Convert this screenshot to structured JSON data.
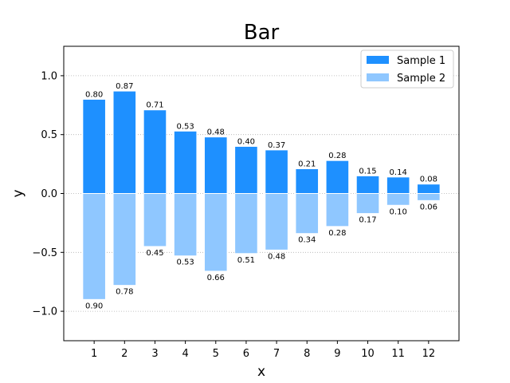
{
  "chart_data": {
    "type": "bar",
    "title": "Bar",
    "xlabel": "x",
    "ylabel": "y",
    "categories": [
      "1",
      "2",
      "3",
      "4",
      "5",
      "6",
      "7",
      "8",
      "9",
      "10",
      "11",
      "12"
    ],
    "xlim": [
      0,
      13
    ],
    "ylim": [
      -1.25,
      1.25
    ],
    "yticks": [
      -1.0,
      -0.5,
      0.0,
      0.5,
      1.0
    ],
    "ytick_labels": [
      "−1.0",
      "−0.5",
      "0.0",
      "0.5",
      "1.0"
    ],
    "grid": "horizontal-dotted",
    "legend_position": "top-right",
    "series": [
      {
        "name": "Sample 1",
        "color": "#1e90ff",
        "values": [
          0.8,
          0.87,
          0.71,
          0.53,
          0.48,
          0.4,
          0.37,
          0.21,
          0.28,
          0.15,
          0.14,
          0.08
        ],
        "labels": [
          "0.80",
          "0.87",
          "0.71",
          "0.53",
          "0.48",
          "0.40",
          "0.37",
          "0.21",
          "0.28",
          "0.15",
          "0.14",
          "0.08"
        ]
      },
      {
        "name": "Sample 2",
        "color": "#8fc7ff",
        "values": [
          -0.9,
          -0.78,
          -0.45,
          -0.53,
          -0.66,
          -0.51,
          -0.48,
          -0.34,
          -0.28,
          -0.17,
          -0.1,
          -0.06
        ],
        "labels": [
          "0.90",
          "0.78",
          "0.45",
          "0.53",
          "0.66",
          "0.51",
          "0.48",
          "0.34",
          "0.28",
          "0.17",
          "0.10",
          "0.06"
        ]
      }
    ]
  }
}
